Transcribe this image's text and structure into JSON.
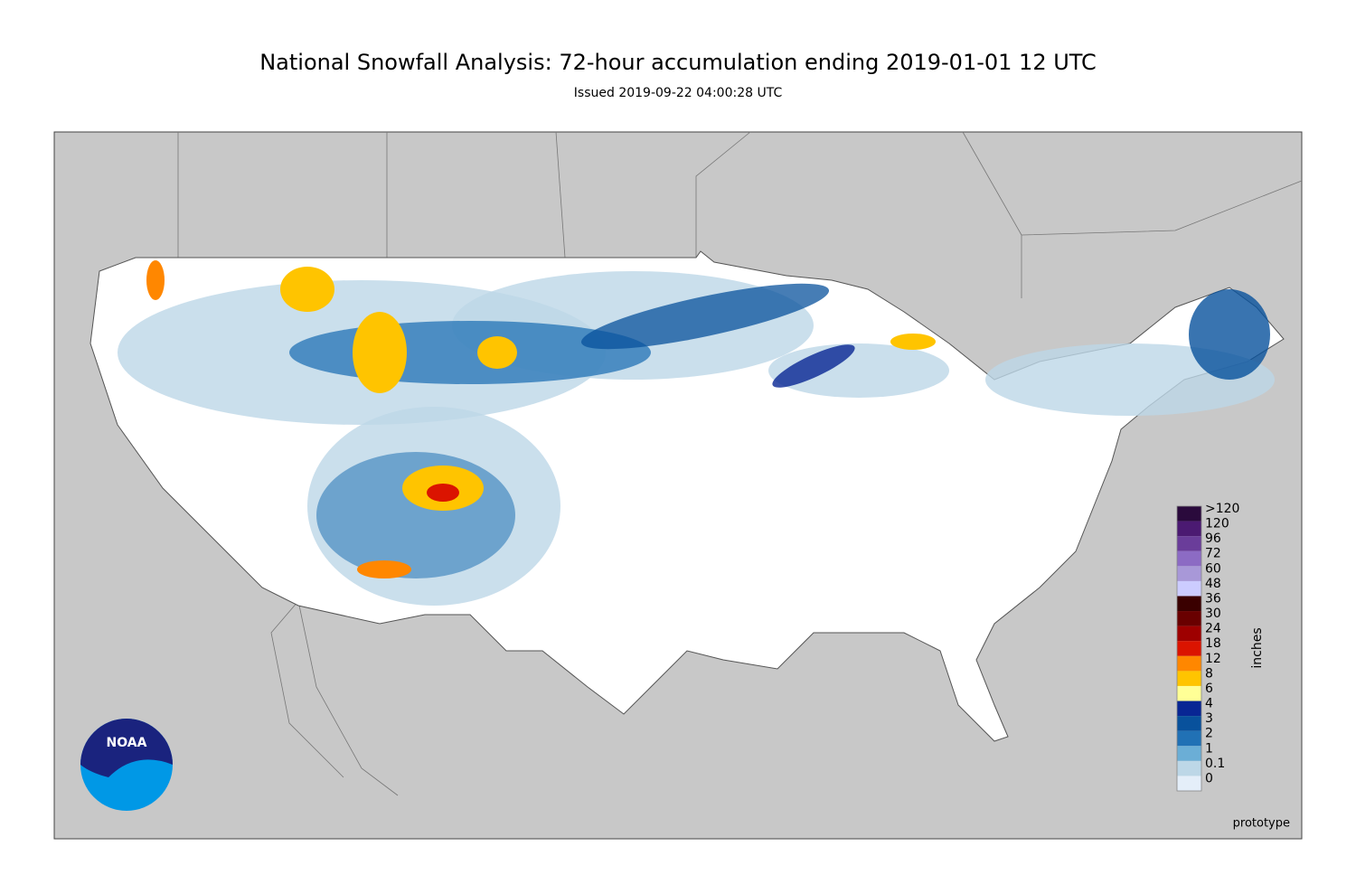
{
  "header": {
    "title": "National Snowfall Analysis: 72-hour accumulation ending 2019-01-01 12 UTC",
    "subtitle": "Issued 2019-09-22 04:00:28 UTC"
  },
  "legend": {
    "unit": "inches",
    "levels": [
      {
        "label": ">120",
        "color": "#2a0a3c"
      },
      {
        "label": "120",
        "color": "#4b1a72"
      },
      {
        "label": "96",
        "color": "#6a3d9a"
      },
      {
        "label": "72",
        "color": "#8c6bc4"
      },
      {
        "label": "60",
        "color": "#a898d8"
      },
      {
        "label": "48",
        "color": "#ccccff"
      },
      {
        "label": "36",
        "color": "#3a0000"
      },
      {
        "label": "30",
        "color": "#690000"
      },
      {
        "label": "24",
        "color": "#9e0000"
      },
      {
        "label": "18",
        "color": "#db1400"
      },
      {
        "label": "12",
        "color": "#ff8700"
      },
      {
        "label": "8",
        "color": "#ffc400"
      },
      {
        "label": "6",
        "color": "#ffff96"
      },
      {
        "label": "4",
        "color": "#082694"
      },
      {
        "label": "3",
        "color": "#08519c"
      },
      {
        "label": "2",
        "color": "#2171b5"
      },
      {
        "label": "1",
        "color": "#6baed6"
      },
      {
        "label": "0.1",
        "color": "#bdd7e7"
      },
      {
        "label": "0",
        "color": "#e4eef9"
      }
    ]
  },
  "logo": "NOAA",
  "note": "prototype"
}
